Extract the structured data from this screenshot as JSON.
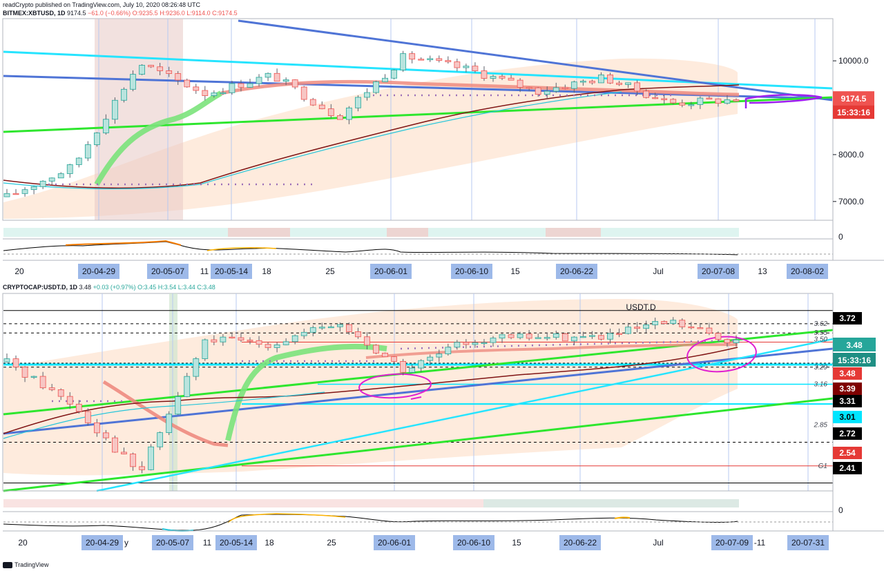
{
  "publisher": "readCrypto published on TradingView.com, July 10, 2020 08:26:48 UTC",
  "top_chart": {
    "symbol": "BITMEX:XBTUSD, 1D",
    "last": "9174.5",
    "change": "−61.0 (−0.66%)",
    "ohlc": {
      "o": "O:9235.5",
      "h": "H:9236.0",
      "l": "L:9114.0",
      "c": "C:9174.5"
    },
    "price_badge": "9174.5",
    "countdown_badge": "15:33:16",
    "y_ticks": [
      "10000.0",
      "8000.0",
      "7000.0"
    ],
    "osc_tick": "0",
    "x_labels": [
      "20",
      "11",
      "18",
      "25",
      "15",
      "Jul",
      "13"
    ],
    "x_date_badges": [
      "20-04-29",
      "20-05-07",
      "20-05-14",
      "20-06-01",
      "20-06-10",
      "20-06-22",
      "20-07-08",
      "20-08-02"
    ]
  },
  "bottom_chart": {
    "symbol": "CRYPTOCAP:USDT.D, 1D",
    "last": "3.48",
    "change": "+0.03 (+0.97%)",
    "ohlc": {
      "o": "O:3.45",
      "h": "H:3.54",
      "l": "L:3.44",
      "c": "C:3.48"
    },
    "chart_title": "USDT.D",
    "price_badge": "3.48",
    "countdown_badge": "15:33:16",
    "level_badges": [
      {
        "value": "3.72",
        "color": "#000000"
      },
      {
        "value": "3.48",
        "color": "#e53935"
      },
      {
        "value": "3.39",
        "color": "#7f0000"
      },
      {
        "value": "3.31",
        "color": "#000000"
      },
      {
        "value": "3.01",
        "color": "#00e5ff"
      },
      {
        "value": "2.72",
        "color": "#000000"
      },
      {
        "value": "2.54",
        "color": "#e53935"
      },
      {
        "value": "2.41",
        "color": "#000000"
      }
    ],
    "level_labels": [
      "3.62",
      "3.55",
      "3.50",
      "3.29",
      "3.16",
      "2.85",
      "G1"
    ],
    "osc_tick": "0",
    "x_labels": [
      "20",
      "y",
      "11",
      "18",
      "25",
      "15",
      "Jul",
      "-11"
    ],
    "x_date_badges": [
      "20-04-29",
      "20-05-07",
      "20-05-14",
      "20-06-01",
      "20-06-10",
      "20-06-22",
      "20-07-09",
      "20-07-31"
    ]
  },
  "footer": {
    "brand": "TradingView"
  },
  "colors": {
    "up": "#26a69a",
    "down": "#ef5350",
    "price_badge": "#ef5350",
    "countdown_badge": "#e53935",
    "date_badge": "#9db9e9",
    "usdt_badge": "#26a69a"
  },
  "chart_data": [
    {
      "type": "candlestick",
      "title": "BITMEX:XBTUSD, 1D",
      "x": [
        "20-04-20",
        "20-04-29",
        "20-05-07",
        "20-05-14",
        "20-05-18",
        "20-05-25",
        "20-06-01",
        "20-06-10",
        "20-06-15",
        "20-06-22",
        "20-07-01",
        "20-07-08"
      ],
      "close": [
        7100,
        7750,
        9950,
        9300,
        9700,
        8800,
        10100,
        9800,
        9350,
        9650,
        9100,
        9174.5
      ],
      "ylim": [
        6600,
        10900
      ]
    },
    {
      "type": "candlestick",
      "title": "CRYPTOCAP:USDT.D, 1D",
      "x": [
        "20-04-20",
        "20-04-29",
        "20-05-07",
        "20-05-14",
        "20-05-18",
        "20-05-25",
        "20-06-01",
        "20-06-10",
        "20-06-15",
        "20-06-22",
        "20-07-01",
        "20-07-09"
      ],
      "close": [
        3.33,
        3.01,
        2.48,
        3.5,
        3.47,
        3.62,
        3.26,
        3.5,
        3.52,
        3.52,
        3.63,
        3.48
      ],
      "ylim": [
        2.35,
        3.85
      ]
    }
  ]
}
